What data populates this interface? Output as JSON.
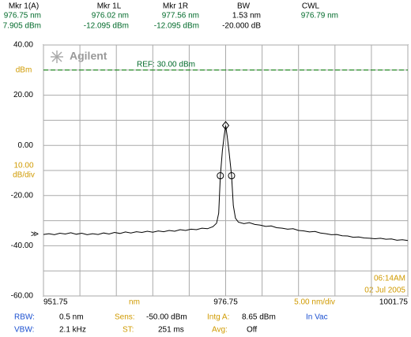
{
  "header": {
    "columns": [
      {
        "label": "Mkr 1(A)",
        "lines": [
          "976.75 nm",
          "7.905 dBm"
        ]
      },
      {
        "label": "Mkr 1L",
        "lines": [
          "976.02 nm",
          "-12.095 dBm"
        ]
      },
      {
        "label": "Mkr 1R",
        "lines": [
          "977.56 nm",
          "-12.095 dBm"
        ]
      },
      {
        "label": "BW",
        "lines": [
          "1.53 nm",
          "-20.000 dB"
        ]
      },
      {
        "label": "CWL",
        "lines": [
          "976.79 nm"
        ]
      }
    ]
  },
  "chart_data": {
    "type": "line",
    "logo": "Agilent",
    "color": "#000000",
    "y_unit": "dBm",
    "y_scale_label": [
      "10.00",
      "dB/div"
    ],
    "x_unit": "nm",
    "x_scale_label": "5.00 nm/div",
    "ref_level": 30,
    "ref_label": "REF: 30.00 dBm",
    "ref_color": "#008000",
    "trace_indicator": "≫",
    "timestamp": [
      "06:14AM",
      "02 Jul 2005"
    ],
    "xlim": [
      951.75,
      1001.75
    ],
    "xticks": [
      951.75,
      976.75,
      1001.75
    ],
    "x_minor_ticks": [
      956.75,
      961.75,
      966.75,
      971.75,
      981.75,
      986.75,
      991.75,
      996.75
    ],
    "ylim": [
      -60,
      40
    ],
    "yticks": [
      {
        "value": 40,
        "label": "40.00"
      },
      {
        "value": 20,
        "label": "20.00"
      },
      {
        "value": 0,
        "label": "0.00"
      },
      {
        "value": -20,
        "label": "-20.00"
      },
      {
        "value": -40,
        "label": "-40.00"
      },
      {
        "value": -60,
        "label": "-60.00"
      }
    ],
    "y_minor_ticks": [
      30,
      10,
      -10,
      -30,
      -50
    ],
    "grid": true,
    "x": [
      951.75,
      952.5,
      953.25,
      954,
      954.75,
      955.5,
      956.25,
      957,
      957.75,
      958.5,
      959.25,
      960,
      960.75,
      961.5,
      962.25,
      963,
      963.75,
      964.5,
      965.25,
      966,
      966.75,
      967.5,
      968.25,
      969,
      969.75,
      970.5,
      971.25,
      972,
      972.75,
      973.5,
      974.25,
      975,
      975.5,
      975.8,
      976.02,
      976.3,
      976.55,
      976.75,
      976.95,
      977.2,
      977.56,
      977.8,
      978.1,
      978.5,
      979.25,
      980,
      980.75,
      981.5,
      982.25,
      983,
      983.75,
      984.5,
      985.25,
      986,
      986.75,
      987.5,
      988.25,
      989,
      989.75,
      990.5,
      991.25,
      992,
      992.75,
      993.5,
      994.25,
      995,
      995.75,
      996.5,
      997.25,
      998,
      998.75,
      999.5,
      1000.25,
      1001,
      1001.75
    ],
    "values": [
      -35.5,
      -35.2,
      -35.6,
      -35.0,
      -35.3,
      -34.8,
      -35.4,
      -35.0,
      -35.6,
      -35.2,
      -35.5,
      -34.9,
      -35.3,
      -34.7,
      -35.1,
      -34.5,
      -34.9,
      -34.4,
      -34.7,
      -34.2,
      -34.6,
      -34.1,
      -34.4,
      -33.9,
      -34.2,
      -33.6,
      -33.9,
      -33.4,
      -33.6,
      -33.0,
      -33.2,
      -32.4,
      -31,
      -27,
      -12.095,
      -2,
      4,
      7.905,
      4,
      -2,
      -12.095,
      -24,
      -29,
      -30.6,
      -31.2,
      -30.8,
      -31.5,
      -31.8,
      -32.3,
      -32.1,
      -32.8,
      -33.0,
      -33.4,
      -33.2,
      -33.9,
      -34.1,
      -34.5,
      -34.3,
      -34.9,
      -35.2,
      -35.6,
      -35.5,
      -36.0,
      -36.1,
      -36.6,
      -36.5,
      -36.9,
      -37.0,
      -37.2,
      -37.0,
      -37.4,
      -37.3,
      -37.8,
      -37.6,
      -37.9
    ],
    "markers": [
      {
        "x": 976.75,
        "y": 7.905,
        "shape": "diamond"
      },
      {
        "x": 976.02,
        "y": -12.095,
        "shape": "circle"
      },
      {
        "x": 977.56,
        "y": -12.095,
        "shape": "circle"
      }
    ]
  },
  "footer": {
    "rows": [
      [
        "RBW:",
        "0.5 nm",
        "Sens:",
        "-50.00 dBm",
        "Intg A:",
        "8.65 dBm",
        "In Vac"
      ],
      [
        "VBW:",
        "2.1 kHz",
        "ST:",
        "251 ms",
        "Avg:",
        "Off"
      ]
    ]
  }
}
